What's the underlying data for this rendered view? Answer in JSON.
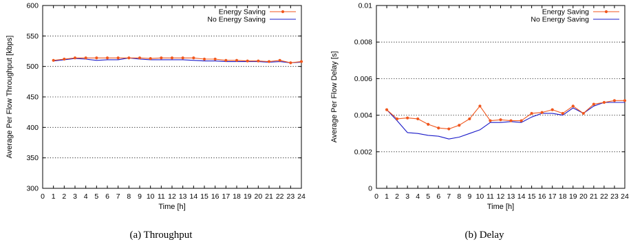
{
  "figure": {
    "captions": [
      "(a)  Throughput",
      "(b)  Delay"
    ]
  },
  "colors": {
    "energy_saving": "#f0561d",
    "no_energy_saving": "#1818c8",
    "grid": "#000000"
  },
  "chart_data": [
    {
      "type": "line",
      "caption": "(a)  Throughput",
      "xlabel": "Time [h]",
      "ylabel": "Average Per Flow Throughput [kbps]",
      "xlim": [
        0,
        24
      ],
      "ylim": [
        300,
        600
      ],
      "xticks": [
        0,
        1,
        2,
        3,
        4,
        5,
        6,
        7,
        8,
        9,
        10,
        11,
        12,
        13,
        14,
        15,
        16,
        17,
        18,
        19,
        20,
        21,
        22,
        23,
        24
      ],
      "yticks": [
        300,
        350,
        400,
        450,
        500,
        550,
        600
      ],
      "yticklabels": [
        "300",
        "350",
        "400",
        "450",
        "500",
        "550",
        "600"
      ],
      "grid": "horizontal dotted",
      "legend_position": "top-right",
      "x": [
        1,
        2,
        3,
        4,
        5,
        6,
        7,
        8,
        9,
        10,
        11,
        12,
        13,
        14,
        15,
        16,
        17,
        18,
        19,
        20,
        21,
        22,
        23,
        24
      ],
      "series": [
        {
          "name": "Energy Saving",
          "marker": "dot",
          "values": [
            510,
            512,
            514,
            514,
            514,
            514,
            514,
            514,
            514,
            513,
            514,
            514,
            514,
            514,
            512,
            512,
            510,
            510,
            509,
            509,
            508,
            510,
            506,
            508
          ]
        },
        {
          "name": "No Energy Saving",
          "marker": "none",
          "values": [
            509,
            511,
            513,
            512,
            510,
            511,
            511,
            514,
            512,
            511,
            511,
            511,
            511,
            510,
            509,
            509,
            508,
            508,
            508,
            508,
            507,
            508,
            506,
            507
          ]
        }
      ]
    },
    {
      "type": "line",
      "caption": "(b)  Delay",
      "xlabel": "Time [h]",
      "ylabel": "Average Per Flow Delay [s]",
      "xlim": [
        0,
        24
      ],
      "ylim": [
        0,
        0.01
      ],
      "xticks": [
        0,
        1,
        2,
        3,
        4,
        5,
        6,
        7,
        8,
        9,
        10,
        11,
        12,
        13,
        14,
        15,
        16,
        17,
        18,
        19,
        20,
        21,
        22,
        23,
        24
      ],
      "yticks": [
        0,
        0.002,
        0.004,
        0.006,
        0.008,
        0.01
      ],
      "yticklabels": [
        "0",
        "0.002",
        "0.004",
        "0.006",
        "0.008",
        "0.01"
      ],
      "grid": "horizontal dotted",
      "legend_position": "top-right",
      "x": [
        1,
        2,
        3,
        4,
        5,
        6,
        7,
        8,
        9,
        10,
        11,
        12,
        13,
        14,
        15,
        16,
        17,
        18,
        19,
        20,
        21,
        22,
        23,
        24
      ],
      "series": [
        {
          "name": "Energy Saving",
          "marker": "dot",
          "values": [
            0.0043,
            0.0038,
            0.00385,
            0.0038,
            0.0035,
            0.0033,
            0.00325,
            0.00345,
            0.0038,
            0.0045,
            0.0037,
            0.00375,
            0.0037,
            0.0037,
            0.0041,
            0.00415,
            0.0043,
            0.0041,
            0.0045,
            0.0041,
            0.0046,
            0.0047,
            0.0048,
            0.0048
          ]
        },
        {
          "name": "No Energy Saving",
          "marker": "none",
          "values": [
            0.0043,
            0.0037,
            0.00305,
            0.003,
            0.0029,
            0.00285,
            0.0027,
            0.0028,
            0.003,
            0.0032,
            0.0036,
            0.0036,
            0.00365,
            0.0036,
            0.0039,
            0.0041,
            0.0041,
            0.004,
            0.0044,
            0.0041,
            0.0045,
            0.0047,
            0.0047,
            0.0047
          ]
        }
      ]
    }
  ]
}
